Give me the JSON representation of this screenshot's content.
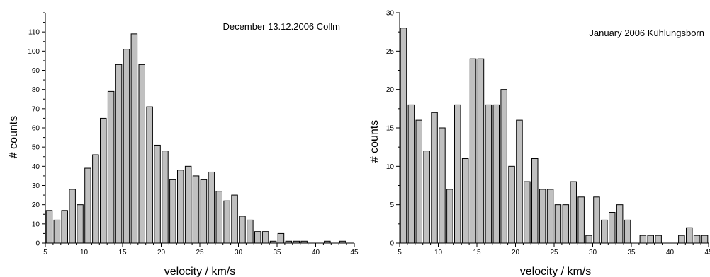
{
  "chart_data": [
    {
      "type": "bar",
      "annotation": "December 13.12.2006 Collm",
      "xlabel": "velocity / km/s",
      "ylabel": "# counts",
      "xlim": [
        5,
        45
      ],
      "ylim": [
        0,
        120
      ],
      "xticks": [
        5,
        10,
        15,
        20,
        25,
        30,
        35,
        40,
        45
      ],
      "yticks": [
        0,
        10,
        20,
        30,
        40,
        50,
        60,
        70,
        80,
        90,
        100,
        110
      ],
      "x": [
        5.5,
        6.5,
        7.5,
        8.5,
        9.5,
        10.5,
        11.5,
        12.5,
        13.5,
        14.5,
        15.5,
        16.5,
        17.5,
        18.5,
        19.5,
        20.5,
        21.5,
        22.5,
        23.5,
        24.5,
        25.5,
        26.5,
        27.5,
        28.5,
        29.5,
        30.5,
        31.5,
        32.5,
        33.5,
        34.5,
        35.5,
        36.5,
        37.5,
        38.5,
        39.5,
        40.5,
        41.5,
        42.5,
        43.5,
        44.5
      ],
      "values": [
        17,
        12,
        17,
        28,
        20,
        39,
        46,
        65,
        79,
        93,
        101,
        109,
        93,
        71,
        51,
        48,
        33,
        38,
        40,
        35,
        33,
        37,
        27,
        22,
        25,
        14,
        12,
        6,
        6,
        1,
        5,
        1,
        1,
        1,
        0,
        0,
        1,
        0,
        1,
        0
      ],
      "grid": false,
      "legend": "none"
    },
    {
      "type": "bar",
      "annotation": "January 2006 Kühlungsborn",
      "xlabel": "velocity / km/s",
      "ylabel": "# counts",
      "xlim": [
        5,
        45
      ],
      "ylim": [
        0,
        30
      ],
      "xticks": [
        5,
        10,
        15,
        20,
        25,
        30,
        35,
        40,
        45
      ],
      "yticks": [
        0,
        5,
        10,
        15,
        20,
        25,
        30
      ],
      "x": [
        5.5,
        6.5,
        7.5,
        8.5,
        9.5,
        10.5,
        11.5,
        12.5,
        13.5,
        14.5,
        15.5,
        16.5,
        17.5,
        18.5,
        19.5,
        20.5,
        21.5,
        22.5,
        23.5,
        24.5,
        25.5,
        26.5,
        27.5,
        28.5,
        29.5,
        30.5,
        31.5,
        32.5,
        33.5,
        34.5,
        35.5,
        36.5,
        37.5,
        38.5,
        39.5,
        40.5,
        41.5,
        42.5,
        43.5,
        44.5
      ],
      "values": [
        28,
        18,
        16,
        12,
        17,
        15,
        7,
        18,
        11,
        24,
        24,
        18,
        18,
        20,
        10,
        16,
        8,
        11,
        7,
        7,
        5,
        5,
        8,
        6,
        1,
        6,
        3,
        4,
        5,
        3,
        0,
        1,
        1,
        1,
        0,
        0,
        1,
        2,
        1,
        1
      ],
      "grid": false,
      "legend": "none"
    }
  ],
  "colors": {
    "bar_fill": "#c0c0c0",
    "bar_stroke": "#000000"
  }
}
